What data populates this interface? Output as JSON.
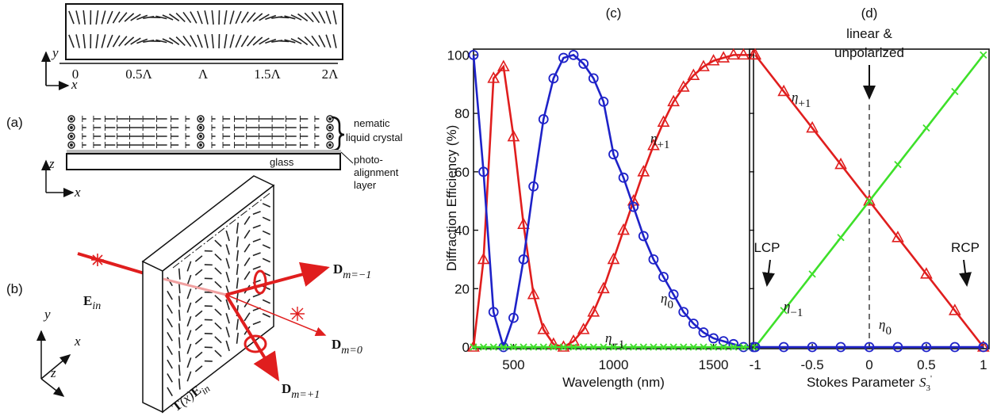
{
  "diagram": {
    "panel_a": "(a)",
    "panel_b": "(b)",
    "top_axis_y": "y",
    "top_axis_x": "x",
    "period_ticks": [
      "0",
      "0.5Λ",
      "Λ",
      "1.5Λ",
      "2Λ"
    ],
    "side_axis_z": "z",
    "side_axis_x": "x",
    "lc_label": [
      "nematic",
      "liquid crystal"
    ],
    "pa_label": [
      "photo-",
      "alignment",
      "layer"
    ],
    "glass": "glass",
    "e_in": {
      "main": "E",
      "sub": "in"
    },
    "d_minus": {
      "main": "D",
      "sub": "m=−1"
    },
    "d_zero": {
      "main": "D",
      "sub": "m=0"
    },
    "d_plus": {
      "main": "D",
      "sub": "m=+1"
    },
    "transfer": {
      "main": "T",
      "mid": "(x)",
      "main2": "E",
      "sub": "in"
    },
    "axes_3d": {
      "y": "y",
      "x": "x",
      "z": "z"
    }
  },
  "chart_data": [
    {
      "type": "line",
      "title": "(c)",
      "xlabel": "Wavelength (nm)",
      "ylabel": "Diffraction Efficiency (%)",
      "x": [
        300,
        350,
        400,
        450,
        500,
        550,
        600,
        650,
        700,
        750,
        800,
        850,
        900,
        950,
        1000,
        1050,
        1100,
        1150,
        1200,
        1250,
        1300,
        1350,
        1400,
        1450,
        1500,
        1550,
        1600,
        1650,
        1700
      ],
      "series": [
        {
          "color": "#e01e1e",
          "marker": "triangle",
          "values": [
            0,
            30,
            92,
            96,
            72,
            42,
            18,
            6,
            1,
            0,
            2,
            6,
            12,
            20,
            30,
            40,
            50,
            60,
            69,
            77,
            84,
            89,
            93,
            96,
            98,
            99,
            100,
            100,
            100
          ]
        },
        {
          "color": "#1e22c8",
          "marker": "circle",
          "values": [
            100,
            60,
            12,
            0,
            10,
            30,
            55,
            78,
            92,
            99,
            100,
            97,
            92,
            84,
            66,
            58,
            48,
            38,
            30,
            24,
            18,
            12,
            8,
            5,
            3,
            2,
            1,
            0,
            0
          ]
        },
        {
          "color": "#3ee02a",
          "marker": "cross",
          "values": [
            0,
            0,
            0,
            0,
            0,
            0,
            0,
            0,
            0,
            0,
            0,
            0,
            0,
            0,
            0,
            0,
            0,
            0,
            0,
            0,
            0,
            0,
            0,
            0,
            0,
            0,
            0,
            0,
            0
          ]
        }
      ],
      "annotations": [
        {
          "text": "η",
          "sub": "+1"
        },
        {
          "text": "η",
          "sub": "0"
        },
        {
          "text": "η",
          "sub": "−1"
        }
      ],
      "xlim": [
        300,
        1700
      ],
      "xticks": [
        500,
        1000,
        1500
      ],
      "ylim": [
        0,
        102
      ],
      "yticks": [
        0,
        20,
        40,
        60,
        80,
        100
      ],
      "show_ytick_labels": true
    },
    {
      "type": "line",
      "title": "(d)",
      "xlabel": "Stokes Parameter",
      "xlabel_symbol": {
        "main": "S",
        "sub": "3",
        "sup": "'"
      },
      "x": [
        -1,
        -0.75,
        -0.5,
        -0.25,
        0,
        0.25,
        0.5,
        0.75,
        1
      ],
      "series": [
        {
          "color": "#e01e1e",
          "marker": "triangle",
          "values": [
            100,
            87.5,
            75,
            62.5,
            50,
            37.5,
            25,
            12.5,
            0
          ]
        },
        {
          "color": "#3ee02a",
          "marker": "cross",
          "values": [
            0,
            12.5,
            25,
            37.5,
            50,
            62.5,
            75,
            87.5,
            100
          ]
        },
        {
          "color": "#1e22c8",
          "marker": "circle",
          "values": [
            0,
            0,
            0,
            0,
            0,
            0,
            0,
            0,
            0
          ]
        }
      ],
      "annotations": [
        {
          "text": "η",
          "sub": "+1"
        },
        {
          "text": "η",
          "sub": "−1"
        },
        {
          "text": "η",
          "sub": "0"
        }
      ],
      "notes": [
        "linear &",
        "unpolarized",
        "LCP",
        "RCP"
      ],
      "xlim": [
        -1.05,
        1.05
      ],
      "xticks": [
        -1,
        -0.5,
        0,
        0.5,
        1
      ],
      "ylim": [
        0,
        102
      ],
      "yticks": [
        0,
        20,
        40,
        60,
        80,
        100
      ],
      "show_ytick_labels": false
    }
  ]
}
